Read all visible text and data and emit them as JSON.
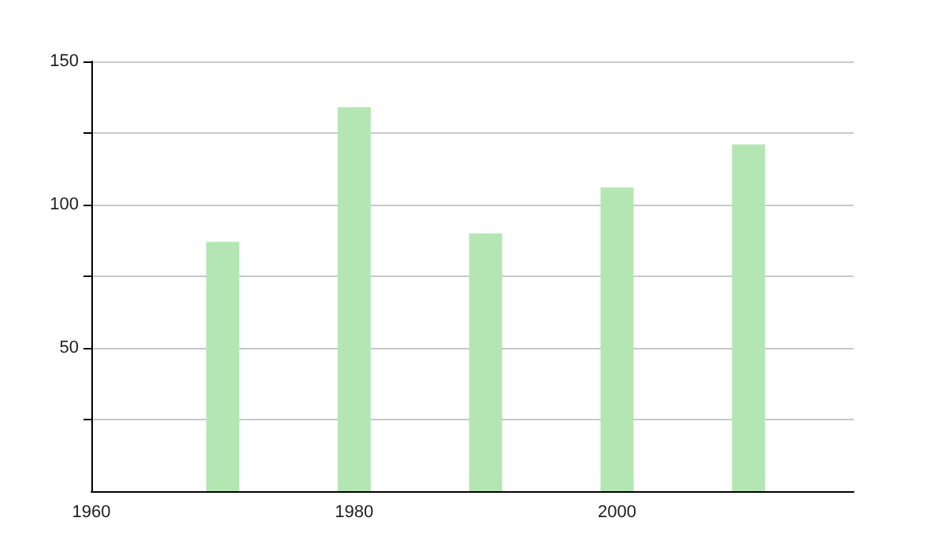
{
  "chart_data": {
    "type": "bar",
    "x": [
      1970,
      1980,
      1990,
      2000,
      2010
    ],
    "values": [
      87,
      134,
      90,
      106,
      121
    ],
    "color": "#b3e6b3",
    "xlim": [
      1960,
      2018
    ],
    "xticks": [
      1960,
      1980,
      2000
    ],
    "ylim": [
      0,
      150
    ],
    "yticks": [
      {
        "value": 25,
        "label": null
      },
      50,
      {
        "value": 75,
        "label": null
      },
      100,
      {
        "value": 125,
        "label": null
      },
      150
    ],
    "grid": "y"
  }
}
